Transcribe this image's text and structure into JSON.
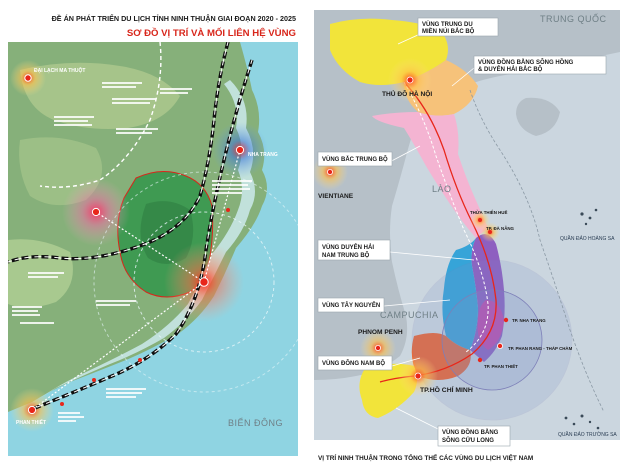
{
  "left_panel": {
    "title": "ĐỀ ÁN PHÁT TRIỂN DU LỊCH TỈNH NINH THUẬN GIAI ĐOẠN 2020 - 2025",
    "subtitle": "SƠ ĐỒ VỊ TRÍ VÀ MỐI LIÊN HỆ VÙNG",
    "places": {
      "buon_ma_thuot": "ĐẠI LẠCH MA THUỘT",
      "nha_trang": "NHA TRANG",
      "phan_thiet": "PHAN THIẾT",
      "bien_dong": "BIỂN ĐÔNG"
    },
    "colors": {
      "sea": "#8fd4e2",
      "land": "#86b07a",
      "province": "#3f9a52",
      "route": "#101010",
      "hub": "#e8261a"
    }
  },
  "right_panel": {
    "countries": {
      "china": "TRUNG QUỐC",
      "laos": "LÀO",
      "cambodia": "CAMPUCHIA"
    },
    "cities": {
      "hanoi": "THỦ ĐÔ HÀ NỘI",
      "vientiane": "VIENTIANE",
      "phnom_penh": "PHNOM PENH",
      "hcm": "TP.HỒ CHÍ MINH",
      "da_nang": "TP. ĐÀ NẴNG",
      "hue": "THỪA THIÊN HUẾ",
      "nha_trang": "TP. NHA TRANG",
      "phan_rang": "TP. PHAN RANG - THÁP CHÀM",
      "phan_thiet": "TP. PHAN THIẾT"
    },
    "regions": {
      "northern_mountains": [
        "VÙNG TRUNG DU",
        "MIỀN NÚI BẮC BỘ"
      ],
      "red_river": [
        "VÙNG ĐỒNG BẰNG SÔNG HỒNG",
        "& DUYÊN HẢI BẮC BỘ"
      ],
      "north_central": "VÙNG BẮC TRUNG BỘ",
      "south_central": [
        "VÙNG DUYÊN HẢI",
        "NAM TRUNG BỘ"
      ],
      "highlands": "VÙNG TÂY NGUYÊN",
      "southeast": "VÙNG ĐÔNG NAM BỘ",
      "mekong": [
        "VÙNG ĐỒNG BẰNG",
        "SÔNG CỬU LONG"
      ]
    },
    "islands": {
      "hoang_sa": "QUẦN ĐẢO HOÀNG SA",
      "truong_sa": "QUẦN ĐẢO TRƯỜNG SA"
    },
    "caption": "VỊ TRÍ NINH THUẬN TRONG TỔNG THỂ CÁC VÙNG DU LỊCH VIỆT NAM",
    "colors": {
      "sea": "#cbd6df",
      "neighbor_land": "#b6c0c8",
      "north": "#f2e43a",
      "red_river": "#f6c27a",
      "north_central": "#f4b4d2",
      "south_central": "#8e5fc0",
      "highlands": "#36a4d8",
      "southeast": "#e86a3a",
      "mekong": "#f2e43a",
      "hub": "#e8261a"
    }
  }
}
